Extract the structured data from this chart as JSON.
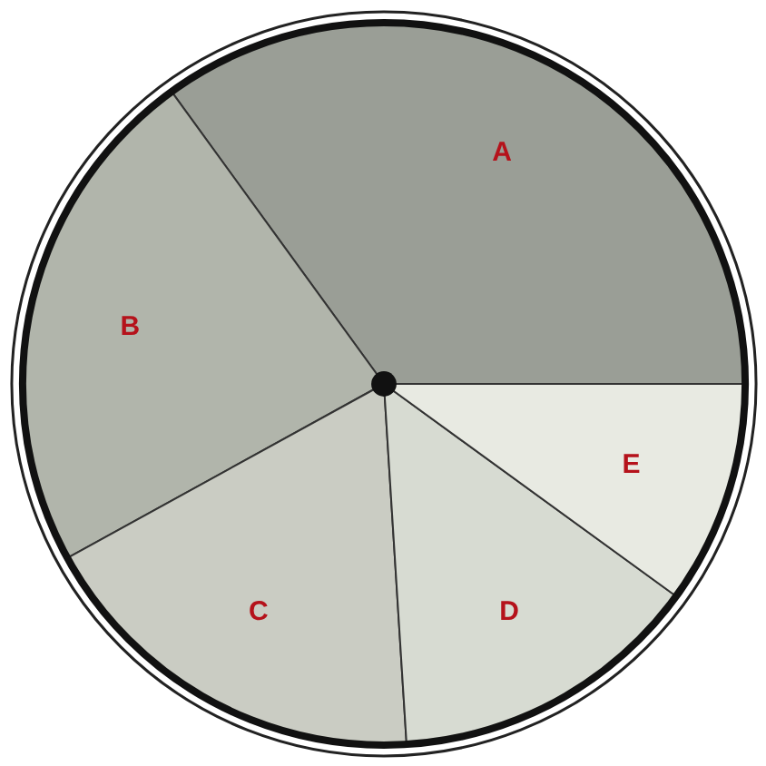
{
  "chart_data": {
    "type": "pie",
    "categories": [
      "A",
      "B",
      "C",
      "D",
      "E"
    ],
    "values": [
      35,
      23,
      18,
      14,
      10
    ],
    "colors": [
      "#9a9e96",
      "#b1b5ab",
      "#caccc3",
      "#d7dbd2",
      "#e8eae2"
    ]
  }
}
